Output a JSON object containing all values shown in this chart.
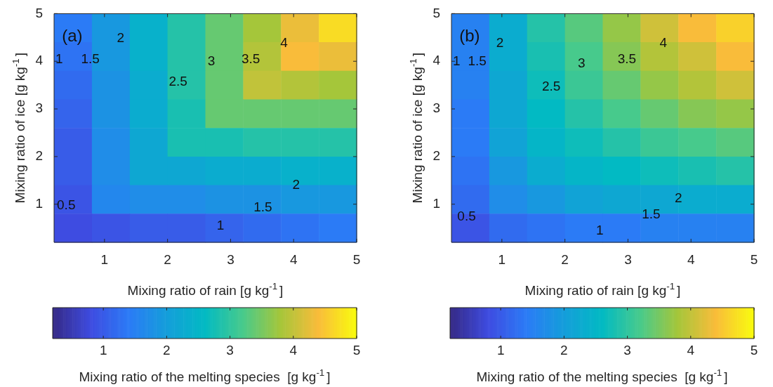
{
  "chart_data": [
    {
      "type": "heatmap",
      "xlabel": "Mixing ratio of rain [g kg$^{-1}$]",
      "ylabel": "Mixing ratio of ice [g kg$^{-1}$]",
      "clabel": "Mixing ratio of the melting species  [g kg$^{-1}$]",
      "x": [
        0.5,
        1.1,
        1.7,
        2.3,
        2.9,
        3.5,
        4.1,
        4.7
      ],
      "y": [
        4.7,
        4.1,
        3.5,
        2.9,
        2.3,
        1.7,
        1.1,
        0.5
      ],
      "xlim": [
        0.2,
        5
      ],
      "ylim": [
        0.2,
        5
      ],
      "xticks": [
        1,
        2,
        3,
        4,
        5
      ],
      "yticks": [
        1,
        2,
        3,
        4,
        5
      ],
      "clim": [
        0.2,
        5
      ],
      "cticks": [
        1,
        2,
        3,
        4,
        5
      ],
      "cells": [
        [
          1.4,
          1.9,
          2.4,
          2.9,
          3.4,
          3.8,
          4.3,
          4.7
        ],
        [
          1.3,
          1.9,
          2.4,
          2.9,
          3.4,
          3.9,
          4.4,
          4.3
        ],
        [
          1.2,
          1.8,
          2.3,
          2.9,
          3.4,
          4.0,
          3.9,
          3.8
        ],
        [
          1.1,
          1.8,
          2.3,
          2.8,
          3.4,
          3.4,
          3.4,
          3.4
        ],
        [
          1.0,
          1.7,
          2.2,
          2.8,
          2.8,
          2.9,
          2.9,
          2.9
        ],
        [
          1.0,
          1.7,
          2.2,
          2.2,
          2.3,
          2.3,
          2.4,
          2.4
        ],
        [
          0.9,
          1.6,
          1.7,
          1.7,
          1.8,
          1.8,
          1.9,
          1.9
        ],
        [
          0.8,
          0.9,
          1.0,
          1.0,
          1.1,
          1.2,
          1.3,
          1.4
        ]
      ],
      "annotations": [
        "(a)",
        "1",
        "1.5",
        "2",
        "2.5",
        "3",
        "3.5",
        "4",
        "2",
        "1.5",
        "1",
        "0.5"
      ]
    },
    {
      "type": "heatmap",
      "xlabel": "Mixing ratio of rain [g kg$^{-1}$]",
      "ylabel": "Mixing ratio of ice [g kg$^{-1}$]",
      "clabel": "Mixing ratio of the melting species  [g kg$^{-1}$]",
      "x": [
        0.5,
        1.1,
        1.7,
        2.3,
        2.9,
        3.5,
        4.1,
        4.7
      ],
      "y": [
        4.7,
        4.1,
        3.5,
        2.9,
        2.3,
        1.7,
        1.1,
        0.5
      ],
      "xlim": [
        0.2,
        5
      ],
      "ylim": [
        0.2,
        5
      ],
      "xticks": [
        1,
        2,
        3,
        4,
        5
      ],
      "yticks": [
        1,
        2,
        3,
        4,
        5
      ],
      "clim": [
        0.2,
        5
      ],
      "cticks": [
        1,
        2,
        3,
        4,
        5
      ],
      "cells": [
        [
          1.5,
          2.3,
          2.9,
          3.3,
          3.7,
          4.1,
          4.4,
          4.6
        ],
        [
          1.5,
          2.3,
          2.8,
          3.2,
          3.6,
          3.9,
          4.1,
          4.4
        ],
        [
          1.5,
          2.2,
          2.7,
          3.1,
          3.4,
          3.7,
          3.9,
          4.1
        ],
        [
          1.4,
          2.2,
          2.6,
          2.9,
          3.2,
          3.4,
          3.6,
          3.7
        ],
        [
          1.4,
          2.1,
          2.5,
          2.7,
          2.9,
          3.1,
          3.2,
          3.3
        ],
        [
          1.3,
          1.9,
          2.3,
          2.5,
          2.6,
          2.7,
          2.8,
          2.9
        ],
        [
          1.2,
          1.7,
          1.9,
          2.1,
          2.2,
          2.2,
          2.3,
          2.3
        ],
        [
          0.9,
          1.2,
          1.3,
          1.4,
          1.4,
          1.5,
          1.5,
          1.5
        ]
      ],
      "annotations": [
        "(b)",
        "1",
        "1.5",
        "2",
        "2.5",
        "3",
        "3.5",
        "4",
        "2",
        "1.5",
        "1",
        "0.5"
      ]
    }
  ]
}
